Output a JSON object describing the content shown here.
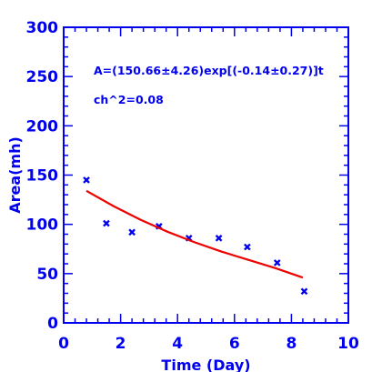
{
  "chart_data": {
    "type": "scatter",
    "title": "",
    "xlabel": "Time (Day)",
    "ylabel": "Area(mh)",
    "xlim": [
      0,
      10
    ],
    "ylim": [
      0,
      300
    ],
    "x_ticks": [
      "0",
      "2",
      "4",
      "6",
      "8",
      "10"
    ],
    "y_ticks": [
      "0",
      "50",
      "100",
      "150",
      "200",
      "250",
      "300"
    ],
    "grid": false,
    "series": [
      {
        "type": "scatter",
        "marker": "x",
        "color": "#0000ee",
        "x": [
          0.8,
          1.5,
          2.4,
          3.35,
          4.4,
          5.45,
          6.45,
          7.5,
          8.45
        ],
        "y": [
          145,
          101,
          92,
          98,
          86,
          86,
          77,
          61,
          32
        ]
      },
      {
        "type": "line",
        "color": "#ee0000",
        "x": [
          0.8,
          1.75,
          2.7,
          3.65,
          4.6,
          5.55,
          6.5,
          7.45,
          8.4
        ],
        "y": [
          134,
          118.5,
          104.7,
          92.5,
          81.8,
          72.3,
          63.9,
          55.5,
          46
        ]
      }
    ],
    "annotations": [
      "A=(150.66±4.26)exp[(-0.14±0.27)]t",
      "ch^2=0.08"
    ]
  }
}
